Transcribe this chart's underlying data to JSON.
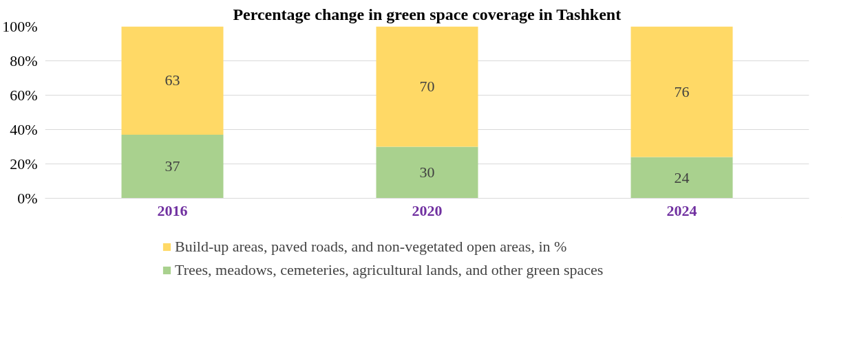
{
  "chart_data": {
    "type": "bar",
    "title": "Percentage change in green space coverage in Tashkent",
    "categories": [
      "2016",
      "2020",
      "2024"
    ],
    "stacked": true,
    "data_labels": true,
    "grid": "y",
    "legend": "bottom",
    "ylim": [
      0,
      100
    ],
    "yticks": [
      {
        "value": 0,
        "label": "0%"
      },
      {
        "value": 20,
        "label": "20%"
      },
      {
        "value": 40,
        "label": "40%"
      },
      {
        "value": 60,
        "label": "60%"
      },
      {
        "value": 80,
        "label": "80%"
      },
      {
        "value": 100,
        "label": "100%"
      }
    ],
    "series": [
      {
        "name": "Trees, meadows, cemeteries, agricultural lands, and other green spaces",
        "color": "#a9d18e",
        "values": [
          37,
          30,
          24
        ]
      },
      {
        "name": "Build-up areas, paved roads, and non-vegetated open areas, in %",
        "color": "#ffd966",
        "values": [
          63,
          70,
          76
        ]
      }
    ]
  }
}
